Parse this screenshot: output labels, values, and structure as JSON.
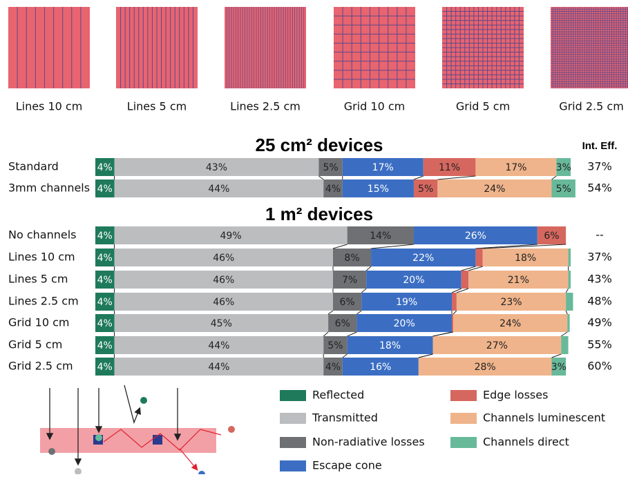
{
  "patterns": [
    "Lines 10 cm",
    "Lines 5 cm",
    "Lines 2.5 cm",
    "Grid 10 cm",
    "Grid 5 cm",
    "Grid 2.5 cm"
  ],
  "chart_data": {
    "type": "stacked_bar",
    "xlim": [
      0,
      100
    ],
    "group_titles": [
      "25 cm² devices",
      "1 m² devices"
    ],
    "categories": [
      [
        "Standard",
        "3mm channels"
      ],
      [
        "No channels",
        "Lines 10 cm",
        "Lines 5 cm",
        "Lines 2.5 cm",
        "Grid 10 cm",
        "Grid 5 cm",
        "Grid 2.5 cm"
      ]
    ],
    "series": [
      {
        "name": "Reflected",
        "color": "#1f7a5c",
        "values": [
          [
            4,
            4
          ],
          [
            4,
            4,
            4,
            4,
            4,
            4,
            4
          ]
        ],
        "value_labels": [
          [
            "4%",
            "4%"
          ],
          [
            "4%",
            "4%",
            "4%",
            "4%",
            "4%",
            "4%",
            "4%"
          ]
        ]
      },
      {
        "name": "Transmitted",
        "color": "#bcbdbf",
        "values": [
          [
            43,
            44
          ],
          [
            49,
            46,
            46,
            46,
            45,
            44,
            44
          ]
        ],
        "value_labels": [
          [
            "43%",
            "44%"
          ],
          [
            "49%",
            "46%",
            "46%",
            "46%",
            "45%",
            "44%",
            "44%"
          ]
        ]
      },
      {
        "name": "Non-radiative losses",
        "color": "#6e7073",
        "values": [
          [
            5,
            4
          ],
          [
            14,
            8,
            7,
            6,
            6,
            5,
            4
          ]
        ],
        "value_labels": [
          [
            "5%",
            "4%"
          ],
          [
            "14%",
            "8%",
            "7%",
            "6%",
            "6%",
            "5%",
            "4%"
          ]
        ]
      },
      {
        "name": "Escape cone",
        "color": "#3b6ec3",
        "values": [
          [
            17,
            15
          ],
          [
            26,
            22,
            20,
            19,
            20,
            18,
            16
          ]
        ],
        "value_labels": [
          [
            "17%",
            "15%"
          ],
          [
            "26%",
            "22%",
            "20%",
            "19%",
            "20%",
            "18%",
            "16%"
          ]
        ]
      },
      {
        "name": "Edge losses",
        "color": "#d6675f",
        "values": [
          [
            11,
            5
          ],
          [
            6,
            1.5,
            1.5,
            1,
            0.3,
            0,
            0
          ]
        ],
        "value_labels": [
          [
            "11%",
            "5%"
          ],
          [
            "6%",
            null,
            null,
            null,
            null,
            null,
            null
          ]
        ]
      },
      {
        "name": "Channels luminescent",
        "color": "#efb48b",
        "values": [
          [
            17,
            24
          ],
          [
            null,
            18,
            21,
            23,
            24,
            27,
            28
          ]
        ],
        "value_labels": [
          [
            "17%",
            "24%"
          ],
          [
            null,
            "18%",
            "21%",
            "23%",
            "24%",
            "27%",
            "28%"
          ]
        ]
      },
      {
        "name": "Channels direct",
        "color": "#67b99a",
        "values": [
          [
            3,
            5
          ],
          [
            null,
            0.5,
            0.5,
            1.5,
            0.5,
            1.5,
            3
          ]
        ],
        "value_labels": [
          [
            "3%",
            "5%"
          ],
          [
            null,
            null,
            null,
            null,
            null,
            null,
            "3%"
          ]
        ]
      }
    ],
    "int_eff": {
      "title": "Int. Eff.",
      "labels": [
        [
          "37%",
          "54%"
        ],
        [
          "--",
          "37%",
          "43%",
          "48%",
          "49%",
          "55%",
          "60%"
        ]
      ]
    }
  }
}
